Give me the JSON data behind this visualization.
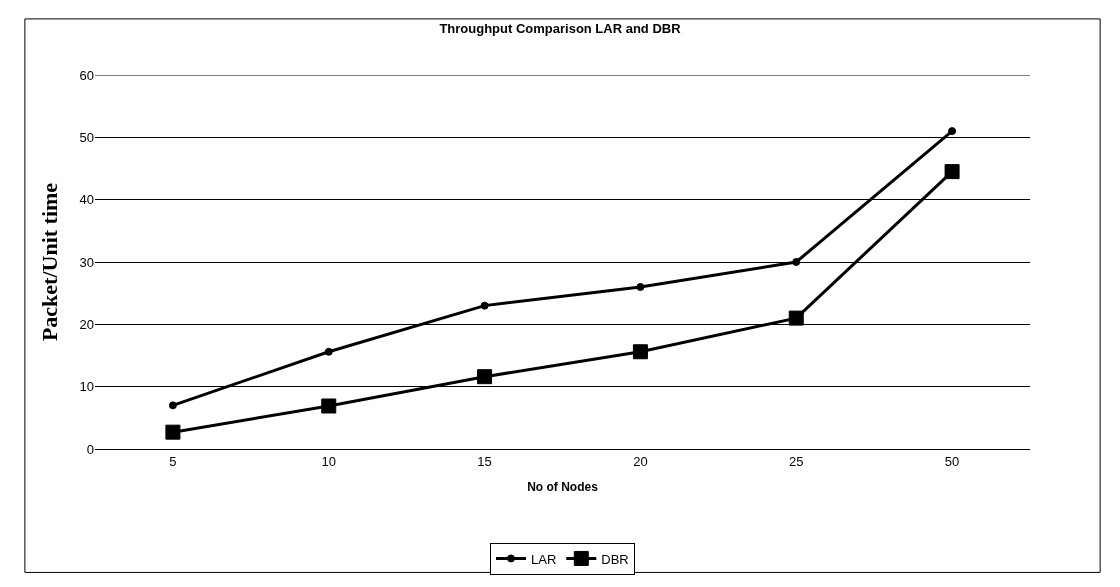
{
  "chart_data": {
    "type": "line",
    "title": "Throughput Comparison LAR and DBR",
    "xlabel": "No of Nodes",
    "ylabel": "Packet/Unit time",
    "categories": [
      "5",
      "10",
      "15",
      "20",
      "25",
      "50"
    ],
    "series": [
      {
        "name": "LAR",
        "color": "#000000",
        "marker": "circle",
        "values": [
          7,
          15.6,
          23,
          26,
          30,
          51
        ]
      },
      {
        "name": "DBR",
        "color": "#000000",
        "marker": "square",
        "values": [
          2.7,
          6.9,
          11.6,
          15.6,
          21,
          44.5
        ]
      }
    ],
    "ylim": [
      0,
      60
    ],
    "yticks": [
      0,
      10,
      20,
      30,
      40,
      50,
      60
    ],
    "grid": "y",
    "legend": "bottom",
    "line_style": "solid"
  }
}
